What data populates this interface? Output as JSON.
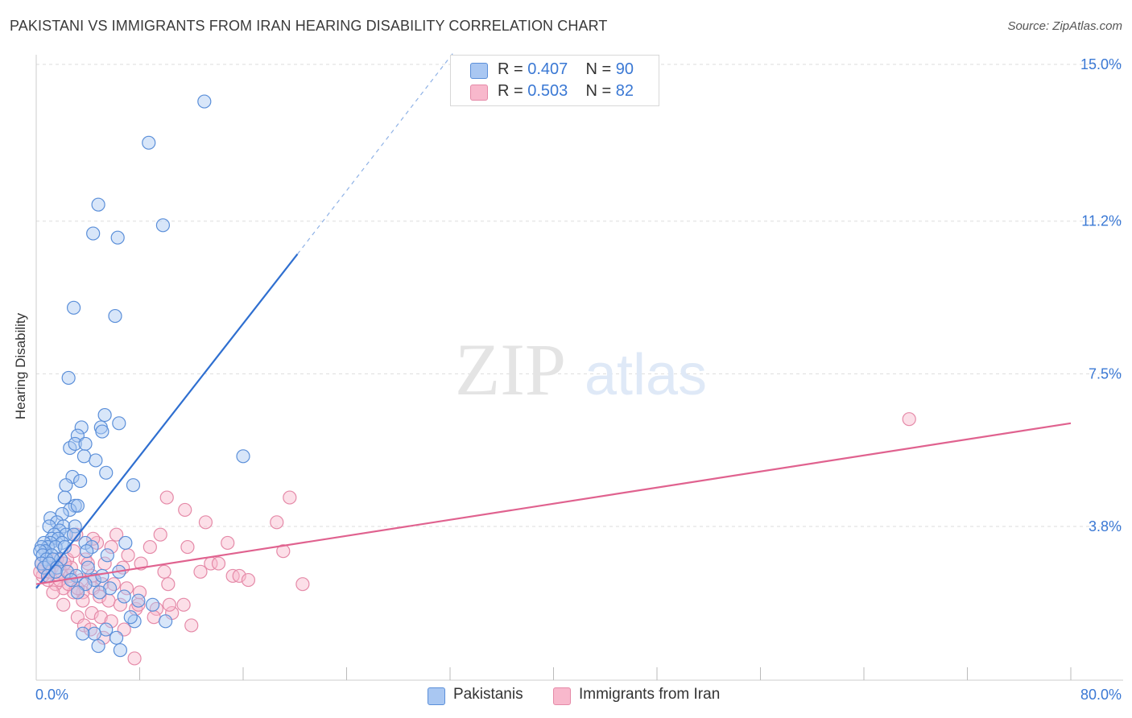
{
  "title": "PAKISTANI VS IMMIGRANTS FROM IRAN HEARING DISABILITY CORRELATION CHART",
  "source": "Source: ZipAtlas.com",
  "watermark": {
    "zip": "ZIP",
    "atlas": "atlas"
  },
  "colors": {
    "blue_fill": "#a9c7f2",
    "blue_stroke": "#5b8fd9",
    "blue_line": "#2f6fd0",
    "pink_fill": "#f8b8cc",
    "pink_stroke": "#e58aa8",
    "pink_line": "#e0628f",
    "axis_label": "#3a78d4",
    "grid": "#dddddd"
  },
  "stats": [
    {
      "r_label": "R = ",
      "r_value": "0.407",
      "n_label": "N = ",
      "n_value": "90"
    },
    {
      "r_label": "R = ",
      "r_value": "0.503",
      "n_label": "N = ",
      "n_value": "82"
    }
  ],
  "legend": [
    "Pakistanis",
    "Immigrants from Iran"
  ],
  "chart_data": {
    "type": "scatter",
    "title": "PAKISTANI VS IMMIGRANTS FROM IRAN HEARING DISABILITY CORRELATION CHART",
    "xlabel": "",
    "ylabel": "Hearing Disability",
    "xlim": [
      0,
      80
    ],
    "ylim": [
      0,
      15.5
    ],
    "x_tick_labels": [
      "0.0%",
      "80.0%"
    ],
    "y_ticks": [
      3.8,
      7.5,
      11.2,
      15.0
    ],
    "y_tick_labels": [
      "3.8%",
      "7.5%",
      "11.2%",
      "15.0%"
    ],
    "series": [
      {
        "name": "Pakistanis",
        "points": [
          [
            13.0,
            14.1
          ],
          [
            8.7,
            13.1
          ],
          [
            4.8,
            11.6
          ],
          [
            9.8,
            11.1
          ],
          [
            4.4,
            10.9
          ],
          [
            6.3,
            10.8
          ],
          [
            2.9,
            9.1
          ],
          [
            6.1,
            8.9
          ],
          [
            2.5,
            7.4
          ],
          [
            5.3,
            6.5
          ],
          [
            3.5,
            6.2
          ],
          [
            5.0,
            6.2
          ],
          [
            6.4,
            6.3
          ],
          [
            3.2,
            6.0
          ],
          [
            2.6,
            5.7
          ],
          [
            3.0,
            5.8
          ],
          [
            3.8,
            5.8
          ],
          [
            5.1,
            6.1
          ],
          [
            16.0,
            5.5
          ],
          [
            3.7,
            5.5
          ],
          [
            4.6,
            5.4
          ],
          [
            5.4,
            5.1
          ],
          [
            2.8,
            5.0
          ],
          [
            3.4,
            4.9
          ],
          [
            2.3,
            4.8
          ],
          [
            7.5,
            4.8
          ],
          [
            2.2,
            4.5
          ],
          [
            3.0,
            4.3
          ],
          [
            2.6,
            4.2
          ],
          [
            2.0,
            4.1
          ],
          [
            3.2,
            4.3
          ],
          [
            1.1,
            4.0
          ],
          [
            1.6,
            3.9
          ],
          [
            1.0,
            3.8
          ],
          [
            2.1,
            3.8
          ],
          [
            3.0,
            3.8
          ],
          [
            1.8,
            3.7
          ],
          [
            1.4,
            3.6
          ],
          [
            2.3,
            3.6
          ],
          [
            2.9,
            3.6
          ],
          [
            1.2,
            3.5
          ],
          [
            1.7,
            3.5
          ],
          [
            2.0,
            3.4
          ],
          [
            1.1,
            3.4
          ],
          [
            0.6,
            3.4
          ],
          [
            0.9,
            3.3
          ],
          [
            0.4,
            3.3
          ],
          [
            1.5,
            3.3
          ],
          [
            2.2,
            3.3
          ],
          [
            3.8,
            3.4
          ],
          [
            4.3,
            3.3
          ],
          [
            3.9,
            3.2
          ],
          [
            0.7,
            3.2
          ],
          [
            0.3,
            3.2
          ],
          [
            0.5,
            3.1
          ],
          [
            1.2,
            3.1
          ],
          [
            1.9,
            3.0
          ],
          [
            0.8,
            3.0
          ],
          [
            0.4,
            2.9
          ],
          [
            1.3,
            3.0
          ],
          [
            5.5,
            3.1
          ],
          [
            6.9,
            3.4
          ],
          [
            0.6,
            2.8
          ],
          [
            1.0,
            2.9
          ],
          [
            1.6,
            2.8
          ],
          [
            2.4,
            2.7
          ],
          [
            3.1,
            2.6
          ],
          [
            4.5,
            2.5
          ],
          [
            5.1,
            2.6
          ],
          [
            6.4,
            2.7
          ],
          [
            4.0,
            2.8
          ],
          [
            0.9,
            2.6
          ],
          [
            1.5,
            2.7
          ],
          [
            2.7,
            2.5
          ],
          [
            3.8,
            2.4
          ],
          [
            5.7,
            2.3
          ],
          [
            4.9,
            2.2
          ],
          [
            3.2,
            2.2
          ],
          [
            6.8,
            2.1
          ],
          [
            7.9,
            2.0
          ],
          [
            9.0,
            1.9
          ],
          [
            10.0,
            1.5
          ],
          [
            7.6,
            1.5
          ],
          [
            7.3,
            1.6
          ],
          [
            5.4,
            1.3
          ],
          [
            4.5,
            1.2
          ],
          [
            6.2,
            1.1
          ],
          [
            3.6,
            1.2
          ],
          [
            6.5,
            0.8
          ],
          [
            4.8,
            0.9
          ]
        ]
      },
      {
        "name": "Immigrants from Iran",
        "points": [
          [
            67.5,
            6.4
          ],
          [
            10.1,
            4.5
          ],
          [
            19.6,
            4.5
          ],
          [
            11.5,
            4.2
          ],
          [
            13.1,
            3.9
          ],
          [
            18.6,
            3.9
          ],
          [
            9.6,
            3.6
          ],
          [
            14.8,
            3.4
          ],
          [
            4.7,
            3.4
          ],
          [
            5.8,
            3.3
          ],
          [
            8.8,
            3.3
          ],
          [
            11.7,
            3.3
          ],
          [
            19.1,
            3.2
          ],
          [
            7.1,
            3.1
          ],
          [
            2.4,
            3.0
          ],
          [
            3.8,
            3.0
          ],
          [
            5.3,
            2.9
          ],
          [
            8.1,
            2.9
          ],
          [
            13.5,
            2.9
          ],
          [
            14.1,
            2.9
          ],
          [
            6.7,
            2.8
          ],
          [
            12.7,
            2.7
          ],
          [
            9.9,
            2.7
          ],
          [
            15.2,
            2.6
          ],
          [
            15.7,
            2.6
          ],
          [
            16.4,
            2.5
          ],
          [
            20.6,
            2.4
          ],
          [
            10.2,
            2.4
          ],
          [
            1.2,
            2.8
          ],
          [
            1.9,
            2.7
          ],
          [
            2.6,
            2.6
          ],
          [
            3.5,
            2.5
          ],
          [
            4.3,
            2.6
          ],
          [
            5.1,
            2.4
          ],
          [
            6.0,
            2.4
          ],
          [
            7.0,
            2.3
          ],
          [
            8.0,
            2.2
          ],
          [
            4.4,
            2.3
          ],
          [
            3.6,
            2.2
          ],
          [
            2.9,
            2.2
          ],
          [
            2.1,
            2.3
          ],
          [
            1.5,
            2.4
          ],
          [
            0.9,
            2.5
          ],
          [
            0.5,
            2.6
          ],
          [
            0.7,
            2.8
          ],
          [
            1.0,
            2.7
          ],
          [
            0.3,
            2.7
          ],
          [
            1.8,
            2.5
          ],
          [
            2.5,
            2.4
          ],
          [
            3.2,
            2.3
          ],
          [
            4.9,
            2.1
          ],
          [
            5.6,
            2.0
          ],
          [
            6.5,
            1.9
          ],
          [
            7.7,
            1.8
          ],
          [
            9.3,
            1.8
          ],
          [
            10.5,
            1.7
          ],
          [
            11.4,
            1.9
          ],
          [
            12.0,
            1.4
          ],
          [
            10.3,
            1.9
          ],
          [
            4.3,
            1.7
          ],
          [
            5.0,
            1.6
          ],
          [
            5.8,
            1.5
          ],
          [
            3.2,
            1.6
          ],
          [
            3.7,
            1.4
          ],
          [
            4.2,
            1.3
          ],
          [
            5.2,
            1.1
          ],
          [
            6.8,
            1.3
          ],
          [
            7.6,
            0.6
          ],
          [
            9.1,
            1.6
          ],
          [
            7.9,
            1.9
          ],
          [
            2.1,
            1.9
          ],
          [
            3.6,
            2.0
          ],
          [
            0.4,
            2.9
          ],
          [
            1.3,
            2.2
          ],
          [
            2.7,
            2.8
          ],
          [
            4.0,
            2.9
          ],
          [
            6.2,
            3.6
          ],
          [
            4.4,
            3.5
          ],
          [
            3.1,
            3.6
          ],
          [
            1.6,
            3.0
          ],
          [
            2.2,
            2.9
          ],
          [
            2.9,
            3.2
          ]
        ]
      }
    ],
    "trend_lines": [
      {
        "series": "Pakistanis",
        "solid": [
          [
            0.0,
            2.3
          ],
          [
            20.2,
            10.4
          ]
        ],
        "dashed": [
          [
            20.2,
            10.4
          ],
          [
            32.3,
            15.3
          ]
        ]
      },
      {
        "series": "Immigrants from Iran",
        "solid": [
          [
            0.0,
            2.4
          ],
          [
            80.0,
            6.3
          ]
        ]
      }
    ]
  }
}
